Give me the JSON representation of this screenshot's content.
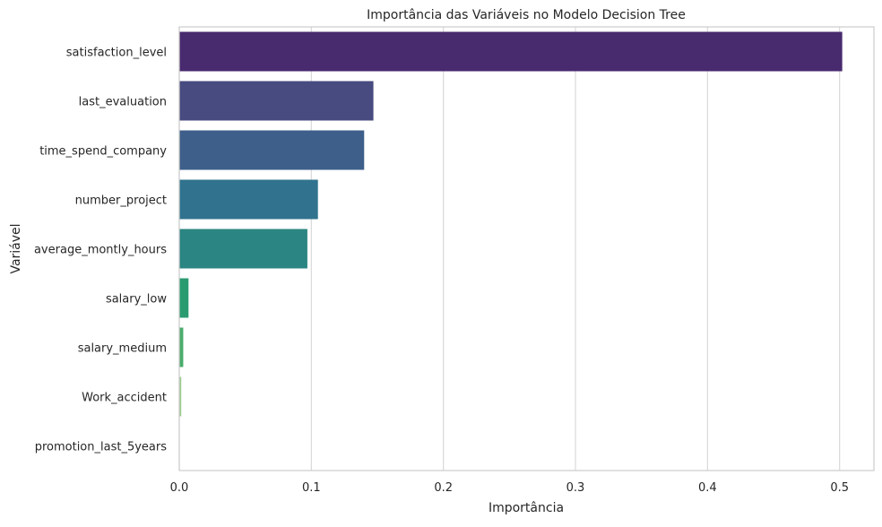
{
  "chart_data": {
    "type": "bar",
    "orientation": "horizontal",
    "title": "Importância das Variáveis no Modelo Decision Tree",
    "xlabel": "Importância",
    "ylabel": "Variável",
    "categories": [
      "satisfaction_level",
      "last_evaluation",
      "time_spend_company",
      "number_project",
      "average_montly_hours",
      "salary_low",
      "salary_medium",
      "Work_accident",
      "promotion_last_5years"
    ],
    "values": [
      0.502,
      0.147,
      0.14,
      0.105,
      0.097,
      0.007,
      0.003,
      0.0015,
      0.0
    ],
    "colors": [
      "#482a6e",
      "#484b7f",
      "#3e5f8a",
      "#31738e",
      "#2b8582",
      "#2a9b70",
      "#4aac6c",
      "#9ccc8f",
      "#d2e2a8"
    ],
    "xlim": [
      0,
      0.526
    ],
    "xticks": [
      0.0,
      0.1,
      0.2,
      0.3,
      0.4,
      0.5
    ],
    "xtick_labels": [
      "0.0",
      "0.1",
      "0.2",
      "0.3",
      "0.4",
      "0.5"
    ],
    "grid": "vertical",
    "legend": "none"
  }
}
